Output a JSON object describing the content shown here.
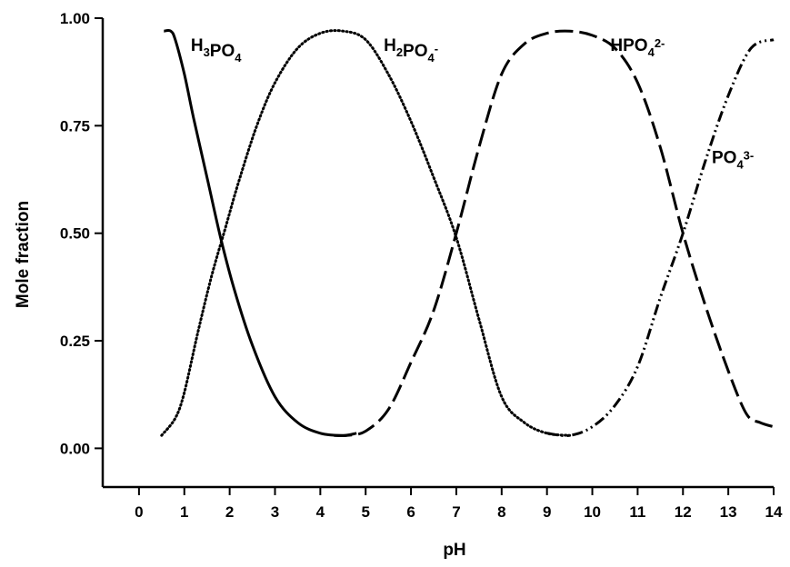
{
  "chart_data": {
    "type": "line",
    "title": "",
    "xlabel": "pH",
    "ylabel": "Mole fraction",
    "xlim": [
      -0.8,
      14
    ],
    "ylim": [
      -0.09,
      1.0
    ],
    "x_ticks": [
      0,
      1,
      2,
      3,
      4,
      5,
      6,
      7,
      8,
      9,
      10,
      11,
      12,
      13,
      14
    ],
    "x_tick_labels": [
      "0",
      "1",
      "2",
      "3",
      "4",
      "5",
      "6",
      "7",
      "8",
      "9",
      "10",
      "11",
      "12",
      "13",
      "14"
    ],
    "y_ticks": [
      0,
      0.25,
      0.5,
      0.75,
      1.0
    ],
    "y_tick_labels": [
      "0.00",
      "0.25",
      "0.50",
      "0.75",
      "1.00"
    ],
    "grid": false,
    "series": [
      {
        "name": "H3PO4",
        "label_parts": [
          [
            "H",
            ""
          ],
          [
            "3",
            "sub"
          ],
          [
            "PO",
            ""
          ],
          [
            "4",
            "sub"
          ]
        ],
        "label_anchor": [
          1.7,
          0.97
        ],
        "style": "solid",
        "x": [
          0.55,
          0.7,
          0.8,
          1.0,
          1.2,
          1.5,
          1.8,
          2.1,
          2.5,
          3.0,
          3.5,
          4.0,
          4.5,
          4.8
        ],
        "values": [
          0.97,
          0.97,
          0.95,
          0.87,
          0.77,
          0.63,
          0.49,
          0.37,
          0.24,
          0.12,
          0.06,
          0.035,
          0.03,
          0.035
        ]
      },
      {
        "name": "H2PO4-",
        "label_parts": [
          [
            "H",
            ""
          ],
          [
            "2",
            "sub"
          ],
          [
            "PO",
            ""
          ],
          [
            "4",
            "sub"
          ],
          [
            "-",
            "sup"
          ]
        ],
        "label_anchor": [
          6.0,
          0.97
        ],
        "style": "dotted",
        "x": [
          0.5,
          0.8,
          1.0,
          1.3,
          1.6,
          1.9,
          2.2,
          2.6,
          3.0,
          3.5,
          4.0,
          4.5,
          5.0,
          5.5,
          6.0,
          6.5,
          7.0,
          7.5,
          8.0,
          8.5,
          9.0,
          9.5
        ],
        "values": [
          0.03,
          0.07,
          0.13,
          0.27,
          0.4,
          0.51,
          0.62,
          0.75,
          0.85,
          0.93,
          0.965,
          0.97,
          0.95,
          0.87,
          0.76,
          0.63,
          0.49,
          0.3,
          0.12,
          0.06,
          0.035,
          0.03
        ]
      },
      {
        "name": "HPO42-",
        "label_parts": [
          [
            "HPO",
            ""
          ],
          [
            "4",
            "sub"
          ],
          [
            "2-",
            "sup"
          ]
        ],
        "label_anchor": [
          11.0,
          0.97
        ],
        "style": "dashed",
        "x": [
          4.3,
          4.6,
          5.0,
          5.5,
          6.0,
          6.5,
          7.0,
          7.5,
          8.0,
          8.5,
          9.0,
          9.5,
          10.0,
          10.5,
          11.0,
          11.5,
          12.0,
          12.5,
          13.0,
          13.4,
          13.7,
          14.0
        ],
        "values": [
          0.03,
          0.03,
          0.04,
          0.09,
          0.2,
          0.32,
          0.5,
          0.7,
          0.87,
          0.94,
          0.965,
          0.97,
          0.96,
          0.93,
          0.85,
          0.7,
          0.5,
          0.33,
          0.18,
          0.08,
          0.06,
          0.05
        ]
      },
      {
        "name": "PO43-",
        "label_parts": [
          [
            "PO",
            ""
          ],
          [
            "4",
            "sub"
          ],
          [
            "3-",
            "sup"
          ]
        ],
        "label_anchor": [
          13.1,
          0.71
        ],
        "style": "dash-dot",
        "x": [
          9.0,
          9.5,
          10.0,
          10.5,
          11.0,
          11.5,
          12.0,
          12.5,
          13.0,
          13.5,
          14.0
        ],
        "values": [
          0.035,
          0.03,
          0.05,
          0.1,
          0.19,
          0.35,
          0.5,
          0.67,
          0.82,
          0.93,
          0.95
        ]
      }
    ]
  }
}
